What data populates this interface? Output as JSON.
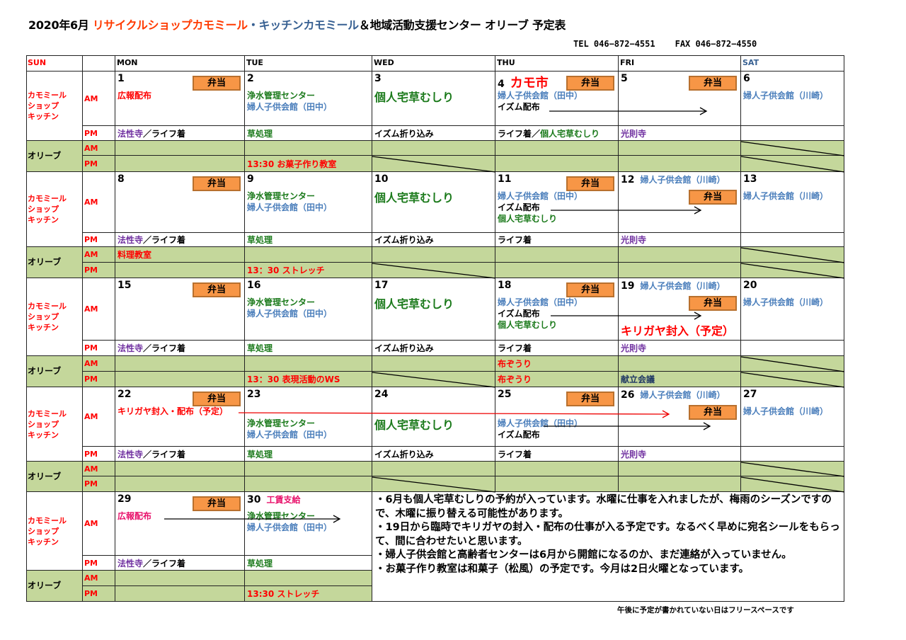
{
  "header": {
    "title_parts": [
      {
        "t": "2020年6月  ",
        "c": "black"
      },
      {
        "t": "リサイクルショップカモミール",
        "c": "orange"
      },
      {
        "t": "・キッチンカモミール",
        "c": "steel"
      },
      {
        "t": "＆地域活動支援センター  オリーブ    予定表",
        "c": "black"
      }
    ],
    "tel": "TEL 046−872−4551",
    "fax": "FAX 046−872−4550"
  },
  "day_headers": [
    {
      "t": "SUN",
      "c": "red"
    },
    {
      "t": "",
      "c": "black"
    },
    {
      "t": "MON",
      "c": "black"
    },
    {
      "t": "TUE",
      "c": "black"
    },
    {
      "t": "WED",
      "c": "black"
    },
    {
      "t": "THU",
      "c": "black"
    },
    {
      "t": "FRI",
      "c": "black"
    },
    {
      "t": "SAT",
      "c": "steel"
    }
  ],
  "labels": {
    "kamomile": "カモミール\nショップ\nキッチン",
    "olive": "オリーブ",
    "am": "AM",
    "pm": "PM",
    "bento": "弁当"
  },
  "colors": {
    "olive_fill": "#c4d79b",
    "bento_fill": "#f79646",
    "red": "#ff0000",
    "green": "#1b7a1b",
    "blue": "#4a7ebb",
    "purple": "#7030a0"
  },
  "weeks": [
    {
      "days": [
        {
          "date": "1",
          "bento": true,
          "am": [
            [
              {
                "t": "広報配布",
                "c": "red"
              }
            ]
          ],
          "pm": [
            {
              "t": "法性寺",
              "c": "purple"
            },
            {
              "t": "／ライフ着",
              "c": "black"
            }
          ],
          "olive_am": [],
          "olive_pm": []
        },
        {
          "date": "2",
          "am": [
            [
              {
                "t": "浄水管理センター",
                "c": "green"
              }
            ],
            [
              {
                "t": "婦人子供会館（田中）",
                "c": "blue"
              }
            ]
          ],
          "pm": [
            {
              "t": "草処理",
              "c": "green"
            }
          ],
          "olive_am": [],
          "olive_pm": [
            {
              "t": "13:30  お菓子作り教室",
              "c": "red"
            }
          ]
        },
        {
          "date": "3",
          "am": [
            [
              {
                "t": "個人宅草むしり",
                "c": "green",
                "big": true
              }
            ]
          ],
          "pm": [
            {
              "t": "イズム折り込み",
              "c": "black"
            }
          ],
          "olive_am": [],
          "olive_pm": []
        },
        {
          "date": "4",
          "date_note": {
            "t": "カモ市",
            "c": "red",
            "big": true
          },
          "bento": true,
          "am": [
            [
              {
                "t": "婦人子供会館（田中）",
                "c": "blue"
              }
            ],
            [
              {
                "t": "イズム配布",
                "c": "black"
              }
            ]
          ],
          "pm": [
            {
              "t": "ライフ着／",
              "c": "black"
            },
            {
              "t": "個人宅草むしり",
              "c": "green"
            }
          ],
          "olive_am": [],
          "olive_pm": []
        },
        {
          "date": "5",
          "bento": true,
          "am": [],
          "pm": [
            {
              "t": "光則寺",
              "c": "purple"
            }
          ],
          "olive_am": [],
          "olive_pm": []
        },
        {
          "date": "6",
          "am": [
            [
              {
                "t": "婦人子供会館（川崎）",
                "c": "blue"
              }
            ]
          ],
          "pm": [],
          "olive_am": [],
          "olive_pm": []
        }
      ]
    },
    {
      "days": [
        {
          "date": "8",
          "bento": true,
          "am": [],
          "pm": [
            {
              "t": "法性寺",
              "c": "purple"
            },
            {
              "t": "／ライフ着",
              "c": "black"
            }
          ],
          "olive_am": [
            {
              "t": "料理教室",
              "c": "red"
            }
          ],
          "olive_pm": []
        },
        {
          "date": "9",
          "am": [
            [
              {
                "t": "浄水管理センター",
                "c": "green"
              }
            ],
            [
              {
                "t": "婦人子供会館（田中）",
                "c": "blue"
              }
            ]
          ],
          "pm": [
            {
              "t": "草処理",
              "c": "green"
            }
          ],
          "olive_am": [],
          "olive_pm": [
            {
              "t": "13：30  ストレッチ",
              "c": "red"
            }
          ]
        },
        {
          "date": "10",
          "am": [
            [
              {
                "t": "個人宅草むしり",
                "c": "green",
                "big": true
              }
            ]
          ],
          "pm": [
            {
              "t": "イズム折り込み",
              "c": "black"
            }
          ],
          "olive_am": [],
          "olive_pm": []
        },
        {
          "date": "11",
          "bento": true,
          "am": [
            [
              {
                "t": "婦人子供会館（田中）",
                "c": "blue"
              }
            ],
            [
              {
                "t": "イズム配布",
                "c": "black"
              }
            ],
            [
              {
                "t": "個人宅草むしり",
                "c": "green"
              }
            ]
          ],
          "pm": [
            {
              "t": "ライフ着",
              "c": "black"
            }
          ],
          "olive_am": [],
          "olive_pm": []
        },
        {
          "date": "12",
          "date_note": {
            "t": "婦人子供会館（川崎）",
            "c": "blue"
          },
          "bento": true,
          "am": [],
          "pm": [
            {
              "t": "光則寺",
              "c": "purple"
            }
          ],
          "olive_am": [],
          "olive_pm": []
        },
        {
          "date": "13",
          "am": [
            [
              {
                "t": "婦人子供会館（川崎）",
                "c": "blue"
              }
            ]
          ],
          "pm": [],
          "olive_am": [],
          "olive_pm": []
        }
      ]
    },
    {
      "days": [
        {
          "date": "15",
          "bento": true,
          "am": [],
          "pm": [
            {
              "t": "法性寺",
              "c": "purple"
            },
            {
              "t": "／ライフ着",
              "c": "black"
            }
          ],
          "olive_am": [],
          "olive_pm": []
        },
        {
          "date": "16",
          "am": [
            [
              {
                "t": "浄水管理センター",
                "c": "green"
              }
            ],
            [
              {
                "t": "婦人子供会館（田中）",
                "c": "blue"
              }
            ]
          ],
          "pm": [
            {
              "t": "草処理",
              "c": "green"
            }
          ],
          "olive_am": [],
          "olive_pm": [
            {
              "t": "13：30  表現活動のWS",
              "c": "red"
            }
          ]
        },
        {
          "date": "17",
          "am": [
            [
              {
                "t": "個人宅草むしり",
                "c": "green",
                "big": true
              }
            ]
          ],
          "pm": [
            {
              "t": "イズム折り込み",
              "c": "black"
            }
          ],
          "olive_am": [],
          "olive_pm": []
        },
        {
          "date": "18",
          "bento": true,
          "am": [
            [
              {
                "t": "婦人子供会館（田中）",
                "c": "blue"
              }
            ],
            [
              {
                "t": "イズム配布",
                "c": "black"
              }
            ],
            [
              {
                "t": "個人宅草むしり",
                "c": "green"
              }
            ]
          ],
          "pm": [
            {
              "t": "ライフ着",
              "c": "black"
            }
          ],
          "olive_am": [
            {
              "t": "布ぞうり",
              "c": "red"
            }
          ],
          "olive_pm": [
            {
              "t": "布ぞうり",
              "c": "red"
            }
          ]
        },
        {
          "date": "19",
          "date_note": {
            "t": "婦人子供会館（川崎）",
            "c": "blue"
          },
          "bento": true,
          "am": [
            [
              {
                "t": "キリガヤ封入（予定）",
                "c": "red",
                "big": true
              }
            ]
          ],
          "pm": [
            {
              "t": "光則寺",
              "c": "purple"
            }
          ],
          "olive_am": [],
          "olive_pm": [
            {
              "t": "献立会議",
              "c": "navy"
            }
          ]
        },
        {
          "date": "20",
          "am": [
            [
              {
                "t": "婦人子供会館（川崎）",
                "c": "blue"
              }
            ]
          ],
          "pm": [],
          "olive_am": [],
          "olive_pm": []
        }
      ]
    },
    {
      "days": [
        {
          "date": "22",
          "bento": true,
          "am": [
            [
              {
                "t": "キリガヤ封入・配布（予定）",
                "c": "red"
              }
            ]
          ],
          "pm": [
            {
              "t": "法性寺",
              "c": "purple"
            },
            {
              "t": "／ライフ着",
              "c": "black"
            }
          ],
          "olive_am": [],
          "olive_pm": []
        },
        {
          "date": "23",
          "am": [
            [
              {
                "t": "浄水管理センター",
                "c": "green"
              }
            ],
            [
              {
                "t": "婦人子供会館（田中）",
                "c": "blue"
              }
            ]
          ],
          "pm": [
            {
              "t": "草処理",
              "c": "green"
            }
          ],
          "olive_am": [],
          "olive_pm": []
        },
        {
          "date": "24",
          "am": [
            [
              {
                "t": "個人宅草むしり",
                "c": "green",
                "big": true
              }
            ]
          ],
          "pm": [
            {
              "t": "イズム折り込み",
              "c": "black"
            }
          ],
          "olive_am": [],
          "olive_pm": []
        },
        {
          "date": "25",
          "bento": true,
          "am": [
            [
              {
                "t": "婦人子供会館（田中）",
                "c": "blue"
              }
            ],
            [
              {
                "t": "イズム配布",
                "c": "black"
              }
            ]
          ],
          "pm": [
            {
              "t": "ライフ着",
              "c": "black"
            }
          ],
          "olive_am": [],
          "olive_pm": []
        },
        {
          "date": "26",
          "date_note": {
            "t": "婦人子供会館（川崎）",
            "c": "blue"
          },
          "bento": true,
          "am": [],
          "pm": [
            {
              "t": "光則寺",
              "c": "purple"
            }
          ],
          "olive_am": [],
          "olive_pm": []
        },
        {
          "date": "27",
          "am": [
            [
              {
                "t": "婦人子供会館（川崎）",
                "c": "blue"
              }
            ]
          ],
          "pm": [],
          "olive_am": [],
          "olive_pm": []
        }
      ]
    },
    {
      "days": [
        {
          "date": "29",
          "bento": true,
          "am": [
            [
              {
                "t": "広報配布",
                "c": "pink"
              }
            ]
          ],
          "pm": [
            {
              "t": "法性寺",
              "c": "purple"
            },
            {
              "t": "／ライフ着",
              "c": "black"
            }
          ],
          "olive_am": [],
          "olive_pm": []
        },
        {
          "date": "30",
          "date_note": {
            "t": "工賃支給",
            "c": "pink"
          },
          "am": [
            [
              {
                "t": "浄水管理センター",
                "c": "green"
              }
            ],
            [
              {
                "t": "婦人子供会館（田中）",
                "c": "blue"
              }
            ]
          ],
          "pm": [
            {
              "t": "草処理",
              "c": "green"
            }
          ],
          "olive_am": [],
          "olive_pm": [
            {
              "t": "13:30  ストレッチ",
              "c": "red"
            }
          ]
        }
      ]
    }
  ],
  "notes": [
    "・6月も個人宅草むしりの予約が入っています。水曜に仕事を入れましたが、梅雨のシーズンですので、木曜に振り替える可能性があります。",
    "・19日から臨時でキリガヤの封入・配布の仕事が入る予定です。なるべく早めに宛名シールをもらって、間に合わせたいと思います。",
    "・婦人子供会館と高齢者センターは6月から開館になるのか、まだ連絡が入っていません。",
    "・お菓子作り教室は和菓子（松風）の予定です。今月は2日火曜となっています。"
  ],
  "footer": "午後に予定が書かれていない日はフリースペースです"
}
